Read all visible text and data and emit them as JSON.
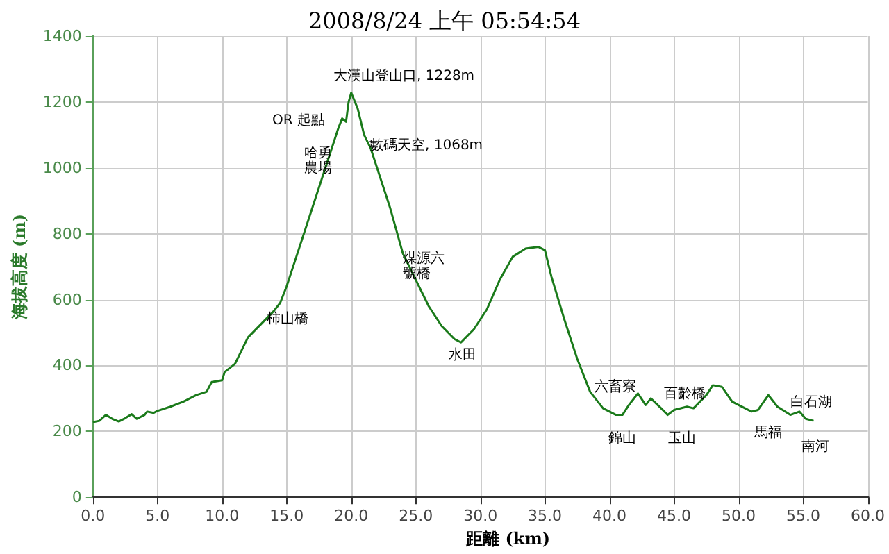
{
  "chart_data": {
    "type": "line",
    "title": "2008/8/24 上午 05:54:54",
    "xlabel": "距離 (km)",
    "ylabel": "海拔高度 (m)",
    "x": [
      0,
      0.5,
      1.0,
      1.5,
      2.0,
      2.5,
      3.0,
      3.4,
      4.0,
      4.2,
      4.7,
      5.0,
      6.0,
      7.0,
      8.0,
      8.8,
      9.2,
      10.0,
      10.2,
      11.0,
      12.0,
      13.0,
      14.0,
      14.5,
      15.0,
      16.0,
      17.0,
      18.0,
      19.0,
      19.3,
      19.6,
      19.8,
      20.0,
      20.5,
      21.0,
      21.5,
      22.0,
      23.0,
      24.0,
      25.0,
      26.0,
      27.0,
      28.0,
      28.5,
      29.5,
      30.5,
      31.5,
      32.5,
      33.5,
      34.5,
      35.0,
      35.5,
      36.5,
      37.5,
      38.5,
      39.5,
      40.5,
      41.0,
      41.5,
      42.2,
      42.8,
      43.2,
      44.0,
      44.5,
      45.0,
      46.0,
      46.5,
      47.5,
      48.0,
      48.7,
      49.5,
      50.0,
      51.0,
      51.5,
      52.3,
      53.0,
      54.0,
      54.7,
      55.2,
      55.8
    ],
    "series": [
      {
        "color": "#1a7a1a",
        "values": [
          228,
          232,
          250,
          238,
          230,
          240,
          252,
          238,
          250,
          260,
          256,
          262,
          275,
          290,
          310,
          320,
          350,
          355,
          380,
          405,
          485,
          525,
          565,
          590,
          640,
          760,
          880,
          1000,
          1120,
          1150,
          1140,
          1200,
          1228,
          1180,
          1100,
          1060,
          1000,
          880,
          740,
          660,
          580,
          520,
          480,
          470,
          510,
          570,
          660,
          730,
          755,
          760,
          750,
          670,
          540,
          420,
          320,
          270,
          250,
          250,
          280,
          315,
          280,
          300,
          270,
          250,
          265,
          275,
          270,
          310,
          340,
          335,
          290,
          280,
          260,
          265,
          310,
          275,
          250,
          260,
          238,
          232
        ]
      }
    ],
    "xlim": [
      0,
      60
    ],
    "xticks": [
      {
        "value": 0,
        "label": "0.0"
      },
      {
        "value": 5,
        "label": "5.0"
      },
      {
        "value": 10,
        "label": "10.0"
      },
      {
        "value": 15,
        "label": "15.0"
      },
      {
        "value": 20,
        "label": "20.0"
      },
      {
        "value": 25,
        "label": "25.0"
      },
      {
        "value": 30,
        "label": "30.0"
      },
      {
        "value": 35,
        "label": "35.0"
      },
      {
        "value": 40,
        "label": "40.0"
      },
      {
        "value": 45,
        "label": "45.0"
      },
      {
        "value": 50,
        "label": "50.0"
      },
      {
        "value": 55,
        "label": "55.0"
      },
      {
        "value": 60,
        "label": "60.0"
      }
    ],
    "ylim": [
      0,
      1400
    ],
    "yticks": [
      0,
      200,
      400,
      600,
      800,
      1000,
      1200,
      1400
    ],
    "grid": true,
    "marker": "none",
    "line_style": "solid",
    "annotations": [
      "大漢山登山口, 1228m",
      "OR 起點",
      "哈勇農場",
      "數碼天空, 1068m",
      "煤源六號橋",
      "柿山橋",
      "水田",
      "六畜寮",
      "錦山",
      "百齡橋",
      "玉山",
      "馬福",
      "白石湖",
      "南河"
    ]
  }
}
